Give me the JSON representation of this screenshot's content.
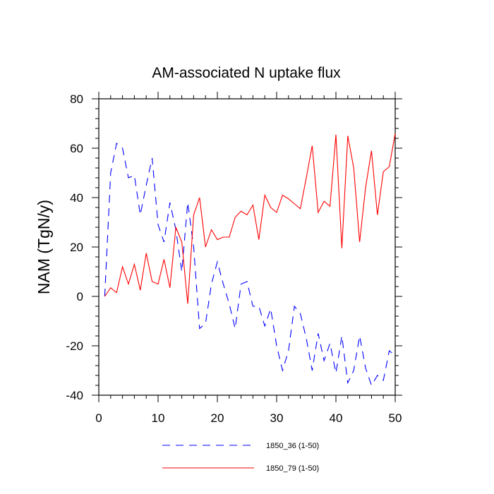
{
  "chart_data": {
    "type": "line",
    "title": "AM-associated N uptake flux",
    "xlabel": "",
    "ylabel": "NAM  (TgN/y)",
    "xlim": [
      0,
      50
    ],
    "ylim": [
      -40,
      80
    ],
    "x_ticks": [
      "0",
      "10",
      "20",
      "30",
      "40",
      "50"
    ],
    "y_ticks": [
      "-40",
      "-20",
      "0",
      "20",
      "40",
      "60",
      "80"
    ],
    "grid": false,
    "legend_position": "bottom",
    "x": [
      1,
      2,
      3,
      4,
      5,
      6,
      7,
      8,
      9,
      10,
      11,
      12,
      13,
      14,
      15,
      16,
      17,
      18,
      19,
      20,
      21,
      22,
      23,
      24,
      25,
      26,
      27,
      28,
      29,
      30,
      31,
      32,
      33,
      34,
      35,
      36,
      37,
      38,
      39,
      40,
      41,
      42,
      43,
      44,
      45,
      46,
      47,
      48,
      49,
      50
    ],
    "series": [
      {
        "name": "1850_36 (1-50)",
        "color": "#0000ff",
        "dash": "dashed",
        "values": [
          0,
          50,
          62,
          60,
          48,
          49,
          33,
          45,
          56,
          29,
          22,
          38,
          27,
          10,
          38,
          20,
          -13,
          -11,
          5,
          14,
          5,
          -3,
          -13,
          5,
          6,
          -4,
          -4,
          -12,
          -5,
          -20,
          -30,
          -22,
          -4,
          -7,
          -17,
          -30,
          -15,
          -26,
          -19,
          -31,
          -16,
          -35,
          -30,
          -16,
          -29,
          -36,
          -32,
          -34,
          -22,
          -24
        ]
      },
      {
        "name": "1850_79 (1-50)",
        "color": "#ff0000",
        "dash": "solid",
        "values": [
          0,
          3.5,
          1.5,
          12,
          5,
          13,
          2.5,
          17.5,
          6,
          5,
          15,
          3.5,
          28,
          22,
          -3,
          33,
          40,
          20,
          27,
          23,
          24,
          24,
          32,
          34.5,
          33,
          37,
          23,
          41,
          36,
          34,
          41,
          39.5,
          37.5,
          35.5,
          48,
          61,
          34,
          38.5,
          36.5,
          65.5,
          19.5,
          65,
          52,
          22,
          44,
          59,
          33,
          50.5,
          52.5,
          66
        ]
      }
    ]
  }
}
